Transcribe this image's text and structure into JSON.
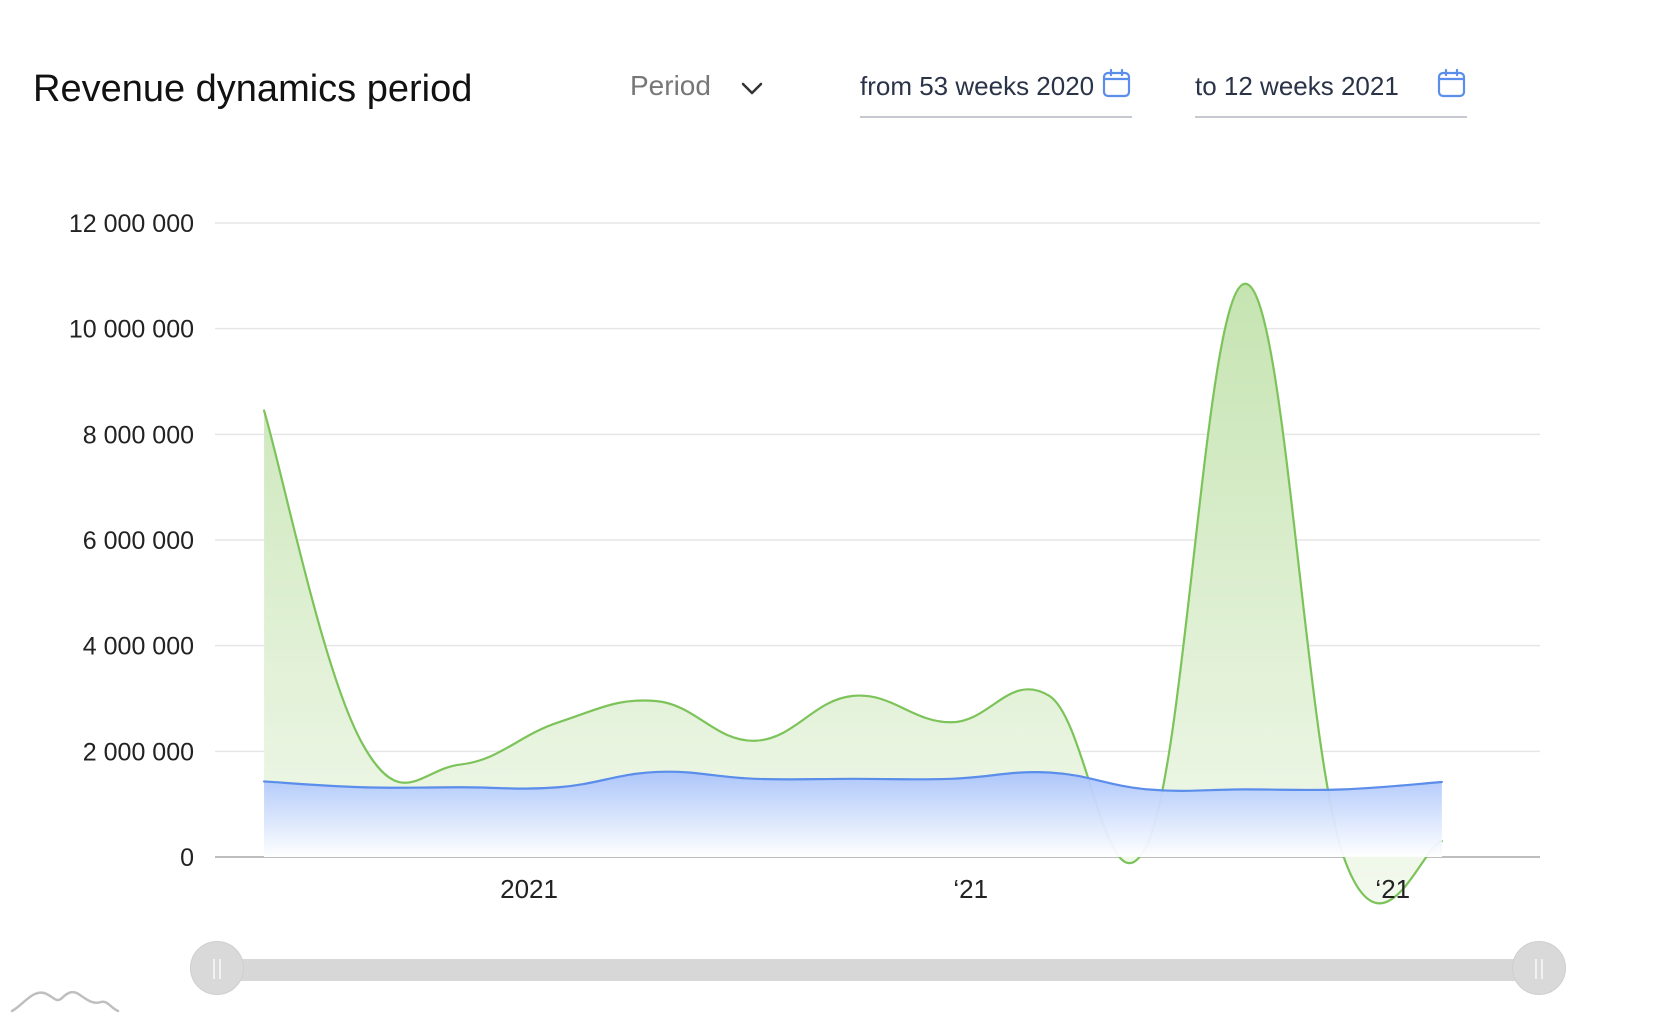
{
  "header": {
    "title": "Revenue dynamics period",
    "period": {
      "label": "Period",
      "icon": "chevron-down-icon"
    },
    "from": {
      "value": "from 53 weeks 2020",
      "icon": "calendar-icon"
    },
    "to": {
      "value": "to 12 weeks 2021",
      "icon": "calendar-icon"
    }
  },
  "colors": {
    "green_line": "#7cc35a",
    "green_fill_top": "#c6e4b2",
    "green_fill_bottom": "#f3f9ee",
    "blue_line": "#5b8dea",
    "blue_fill_top": "#a9c3fb",
    "blue_fill_bottom": "#ffffff",
    "grid": "#e6e6e6",
    "axis": "#bdbdbd",
    "calendar": "#5b8dea"
  },
  "chart_data": {
    "type": "area",
    "x": [
      1,
      2,
      3,
      4,
      5,
      6,
      7,
      8,
      9,
      10,
      11,
      12,
      13
    ],
    "x_tick_labels": [
      {
        "x": 3.7,
        "label": "2021"
      },
      {
        "x": 8.2,
        "label": "‘21"
      },
      {
        "x": 12.5,
        "label": "‘21"
      }
    ],
    "y_ticks": [
      0,
      2000000,
      4000000,
      6000000,
      8000000,
      10000000,
      12000000
    ],
    "y_tick_labels": [
      "0",
      "2 000 000",
      "4 000 000",
      "6 000 000",
      "8 000 000",
      "10 000 000",
      "12 000 000"
    ],
    "ylim": [
      0,
      12000000
    ],
    "xlim": [
      0.5,
      14
    ],
    "grid": true,
    "series": [
      {
        "key": "green",
        "values": [
          8450000,
          2150000,
          1750000,
          2550000,
          2950000,
          2200000,
          3050000,
          2550000,
          3050000,
          250000,
          10850000,
          0,
          300000
        ]
      },
      {
        "key": "blue",
        "values": [
          1430000,
          1320000,
          1320000,
          1320000,
          1610000,
          1480000,
          1480000,
          1480000,
          1600000,
          1280000,
          1280000,
          1280000,
          1420000
        ]
      }
    ],
    "navigator": {
      "range": "full"
    }
  }
}
